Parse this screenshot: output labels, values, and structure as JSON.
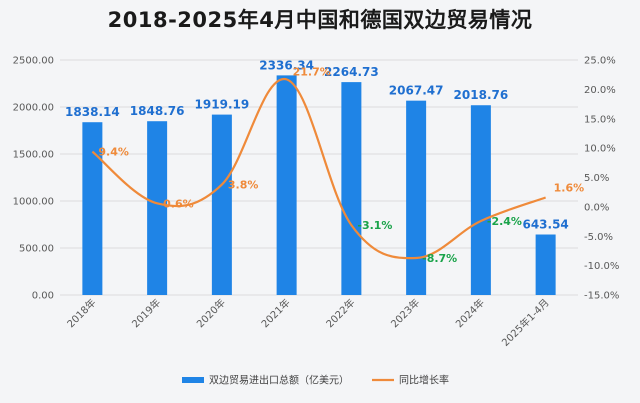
{
  "title": "2018-2025年4月中国和德国双边贸易情况",
  "colors": {
    "bar": "#1f84e6",
    "line": "#ef8a3a",
    "positive_label": "#ef8a3a",
    "negative_label": "#1aa34a",
    "bar_label": "#1f6fd0"
  },
  "chart_data": {
    "type": "bar",
    "title": "2018-2025年4月中国和德国双边贸易情况",
    "categories": [
      "2018年",
      "2019年",
      "2020年",
      "2021年",
      "2022年",
      "2023年",
      "2024年",
      "2025年1-4月"
    ],
    "series": [
      {
        "name": "双边贸易进出口总额（亿美元）",
        "type": "bar",
        "axis": "left",
        "values": [
          1838.14,
          1848.76,
          1919.19,
          2336.34,
          2264.73,
          2067.47,
          2018.76,
          643.54
        ],
        "value_labels": [
          "1838.14",
          "1848.76",
          "1919.19",
          "2336.34",
          "2264.73",
          "2067.47",
          "2018.76",
          "643.54"
        ]
      },
      {
        "name": "同比增长率",
        "type": "line",
        "axis": "right",
        "values": [
          9.4,
          0.6,
          3.8,
          21.7,
          -3.1,
          -8.7,
          -2.4,
          1.6
        ],
        "value_labels": [
          "9.4%",
          "0.6%",
          "3.8%",
          "21.7%",
          "-3.1%",
          "-8.7%",
          "-2.4%",
          "1.6%"
        ]
      }
    ],
    "y_left": {
      "ylim": [
        0,
        2500
      ],
      "ticks": [
        0,
        500,
        1000,
        1500,
        2000,
        2500
      ],
      "tick_labels": [
        "0.00",
        "500.00",
        "1000.00",
        "1500.00",
        "2000.00",
        "2500.00"
      ]
    },
    "y_right": {
      "ylim": [
        -15,
        25
      ],
      "ticks": [
        -15,
        -10,
        -5,
        0,
        5,
        10,
        15,
        20,
        25
      ],
      "tick_labels": [
        "-15.0%",
        "-10.0%",
        "-5.0%",
        "0.0%",
        "5.0%",
        "10.0%",
        "15.0%",
        "20.0%",
        "25.0%"
      ]
    },
    "grid": true,
    "legend": "bottom"
  }
}
